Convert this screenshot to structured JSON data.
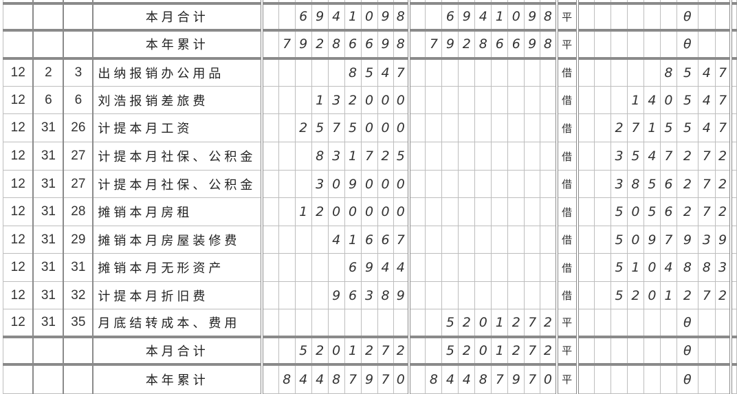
{
  "ledger": {
    "rows": [
      {
        "type": "total",
        "month": "",
        "day": "",
        "voucher": "",
        "summary": "",
        "debit": "",
        "credit": "",
        "direction": "",
        "balance": ""
      },
      {
        "type": "total",
        "month": "",
        "day": "",
        "voucher": "",
        "summary": "本月合计",
        "debit": "6941098",
        "credit": "6941098",
        "direction": "平",
        "balance": "θ"
      },
      {
        "type": "total",
        "month": "",
        "day": "",
        "voucher": "",
        "summary": "本年累计",
        "debit": "79286698",
        "credit": "79286698",
        "direction": "平",
        "balance": "θ"
      },
      {
        "type": "entry",
        "month": "12",
        "day": "2",
        "voucher": "3",
        "summary": "出纳报销办公用品",
        "debit": "8547",
        "credit": "",
        "direction": "借",
        "balance": "8547"
      },
      {
        "type": "entry",
        "month": "12",
        "day": "6",
        "voucher": "6",
        "summary": "刘浩报销差旅费",
        "debit": "132000",
        "credit": "",
        "direction": "借",
        "balance": "140547"
      },
      {
        "type": "entry",
        "month": "12",
        "day": "31",
        "voucher": "26",
        "summary": "计提本月工资",
        "debit": "2575000",
        "credit": "",
        "direction": "借",
        "balance": "2715547"
      },
      {
        "type": "entry",
        "month": "12",
        "day": "31",
        "voucher": "27",
        "summary": "计提本月社保、公积金",
        "debit": "831725",
        "credit": "",
        "direction": "借",
        "balance": "3547272"
      },
      {
        "type": "entry",
        "month": "12",
        "day": "31",
        "voucher": "27",
        "summary": "计提本月社保、公积金",
        "debit": "309000",
        "credit": "",
        "direction": "借",
        "balance": "3856272"
      },
      {
        "type": "entry",
        "month": "12",
        "day": "31",
        "voucher": "28",
        "summary": "摊销本月房租",
        "debit": "1200000",
        "credit": "",
        "direction": "借",
        "balance": "5056272"
      },
      {
        "type": "entry",
        "month": "12",
        "day": "31",
        "voucher": "29",
        "summary": "摊销本月房屋装修费",
        "debit": "41667",
        "credit": "",
        "direction": "借",
        "balance": "5097939"
      },
      {
        "type": "entry",
        "month": "12",
        "day": "31",
        "voucher": "31",
        "summary": "摊销本月无形资产",
        "debit": "6944",
        "credit": "",
        "direction": "借",
        "balance": "5104883"
      },
      {
        "type": "entry",
        "month": "12",
        "day": "31",
        "voucher": "32",
        "summary": "计提本月折旧费",
        "debit": "96389",
        "credit": "",
        "direction": "借",
        "balance": "5201272"
      },
      {
        "type": "entry",
        "month": "12",
        "day": "31",
        "voucher": "35",
        "summary": "月底结转成本、费用",
        "debit": "",
        "credit": "5201272",
        "direction": "平",
        "balance": "θ"
      },
      {
        "type": "total",
        "month": "",
        "day": "",
        "voucher": "",
        "summary": "本月合计",
        "debit": "5201272",
        "credit": "5201272",
        "direction": "平",
        "balance": "θ"
      },
      {
        "type": "total",
        "month": "",
        "day": "",
        "voucher": "",
        "summary": "本年累计",
        "debit": "84487970",
        "credit": "84487970",
        "direction": "平",
        "balance": "θ"
      }
    ]
  }
}
